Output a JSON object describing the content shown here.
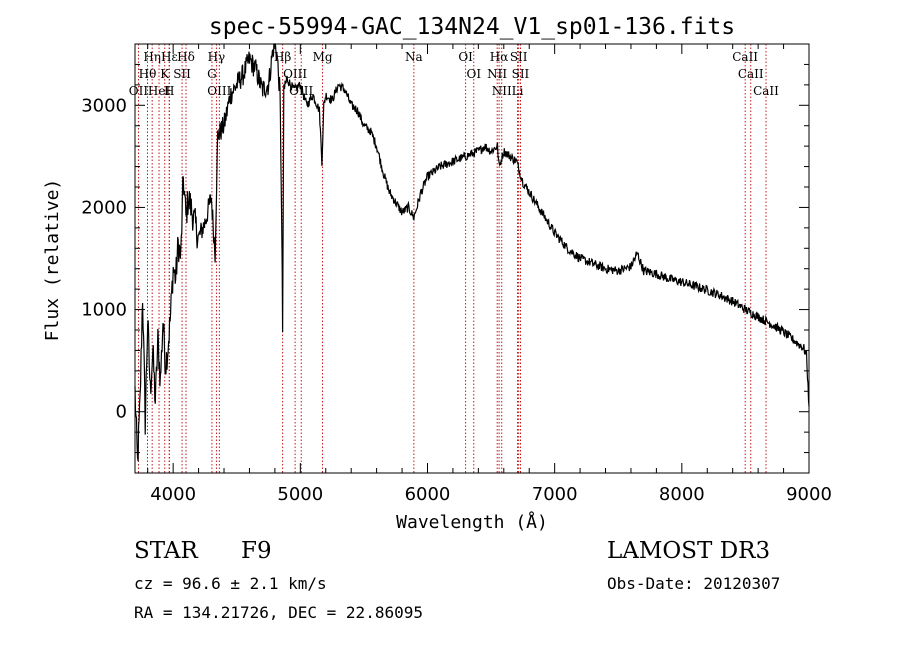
{
  "chart_data": {
    "type": "line",
    "title": "spec-55994-GAC_134N24_V1_sp01-136.fits",
    "xlabel": "Wavelength (Å)",
    "ylabel": "Flux (relative)",
    "xlim": [
      3700,
      9000
    ],
    "ylim": [
      -600,
      3600
    ],
    "xticks": [
      4000,
      5000,
      6000,
      7000,
      8000,
      9000
    ],
    "yticks": [
      0,
      1000,
      2000,
      3000
    ],
    "series": [
      {
        "name": "spectrum",
        "x": [
          3700,
          3720,
          3740,
          3760,
          3780,
          3800,
          3820,
          3840,
          3860,
          3880,
          3900,
          3920,
          3940,
          3960,
          3980,
          4000,
          4020,
          4040,
          4060,
          4080,
          4100,
          4120,
          4150,
          4200,
          4250,
          4300,
          4330,
          4350,
          4400,
          4450,
          4500,
          4550,
          4600,
          4650,
          4700,
          4750,
          4780,
          4800,
          4820,
          4840,
          4850,
          4861,
          4870,
          4880,
          4900,
          4950,
          5000,
          5050,
          5100,
          5150,
          5170,
          5185,
          5200,
          5250,
          5300,
          5350,
          5400,
          5450,
          5500,
          5550,
          5600,
          5650,
          5700,
          5750,
          5800,
          5850,
          5893,
          5950,
          6000,
          6100,
          6200,
          6300,
          6400,
          6450,
          6500,
          6550,
          6563,
          6600,
          6650,
          6700,
          6750,
          6800,
          6900,
          7000,
          7100,
          7200,
          7300,
          7400,
          7500,
          7600,
          7650,
          7700,
          7800,
          7900,
          8000,
          8100,
          8200,
          8300,
          8400,
          8500,
          8600,
          8700,
          8800,
          8900,
          8960,
          8980,
          9000
        ],
        "y": [
          200,
          -500,
          100,
          1150,
          -100,
          900,
          200,
          600,
          100,
          700,
          300,
          900,
          450,
          650,
          950,
          1400,
          1300,
          1650,
          1500,
          2300,
          1900,
          2100,
          1950,
          1700,
          1850,
          2100,
          1550,
          2700,
          2800,
          3100,
          3200,
          3300,
          3450,
          3350,
          3150,
          3200,
          3500,
          3650,
          3450,
          3100,
          2300,
          800,
          3100,
          3200,
          3250,
          3150,
          3200,
          3000,
          3100,
          2950,
          2450,
          3000,
          3100,
          3050,
          3200,
          3150,
          3000,
          2950,
          2800,
          2750,
          2600,
          2350,
          2150,
          2050,
          1950,
          2000,
          1900,
          2150,
          2300,
          2400,
          2450,
          2500,
          2550,
          2600,
          2550,
          2600,
          2400,
          2550,
          2500,
          2450,
          2250,
          2150,
          1950,
          1750,
          1600,
          1500,
          1450,
          1400,
          1380,
          1420,
          1550,
          1380,
          1350,
          1300,
          1270,
          1230,
          1190,
          1140,
          1080,
          1000,
          930,
          860,
          780,
          680,
          620,
          550,
          50
        ]
      }
    ],
    "line_markers": [
      {
        "label": "Hδ",
        "wavelength": 4101
      },
      {
        "label": "Hγ",
        "wavelength": 4340
      },
      {
        "label": "Hβ",
        "wavelength": 4861
      },
      {
        "label": "Hα",
        "wavelength": 6563
      },
      {
        "label": "Hε",
        "wavelength": 3970
      },
      {
        "label": "Hη",
        "wavelength": 3835
      },
      {
        "label": "Hθ",
        "wavelength": 3798
      },
      {
        "label": "K",
        "wavelength": 3934
      },
      {
        "label": "H",
        "wavelength": 3969
      },
      {
        "label": "G",
        "wavelength": 4305
      },
      {
        "label": "Mg",
        "wavelength": 5175
      },
      {
        "label": "Na",
        "wavelength": 5893
      },
      {
        "label": "OII",
        "wavelength": 3727
      },
      {
        "label": "OIII",
        "wavelength": 4363
      },
      {
        "label": "OIII",
        "wavelength": 4959
      },
      {
        "label": "OIII",
        "wavelength": 5007
      },
      {
        "label": "OI",
        "wavelength": 6300
      },
      {
        "label": "OI",
        "wavelength": 6364
      },
      {
        "label": "NII",
        "wavelength": 6548
      },
      {
        "label": "NII",
        "wavelength": 6584
      },
      {
        "label": "SII",
        "wavelength": 6717
      },
      {
        "label": "SII",
        "wavelength": 6731
      },
      {
        "label": "SII",
        "wavelength": 4070
      },
      {
        "label": "HeI",
        "wavelength": 3889
      },
      {
        "label": "Li",
        "wavelength": 6708
      },
      {
        "label": "CaII",
        "wavelength": 8498
      },
      {
        "label": "CaII",
        "wavelength": 8542
      },
      {
        "label": "CaII",
        "wavelength": 8662
      }
    ]
  },
  "info": {
    "object_class": "STAR",
    "subclass": "F9",
    "survey": "LAMOST DR3",
    "redshift": "cz = 96.6 ± 2.1 km/s",
    "obs_date": "Obs-Date: 20120307",
    "coords": "RA = 134.21726, DEC =  22.86095"
  },
  "colors": {
    "line": "#000000",
    "marker": "#c00000",
    "axis": "#000000"
  }
}
